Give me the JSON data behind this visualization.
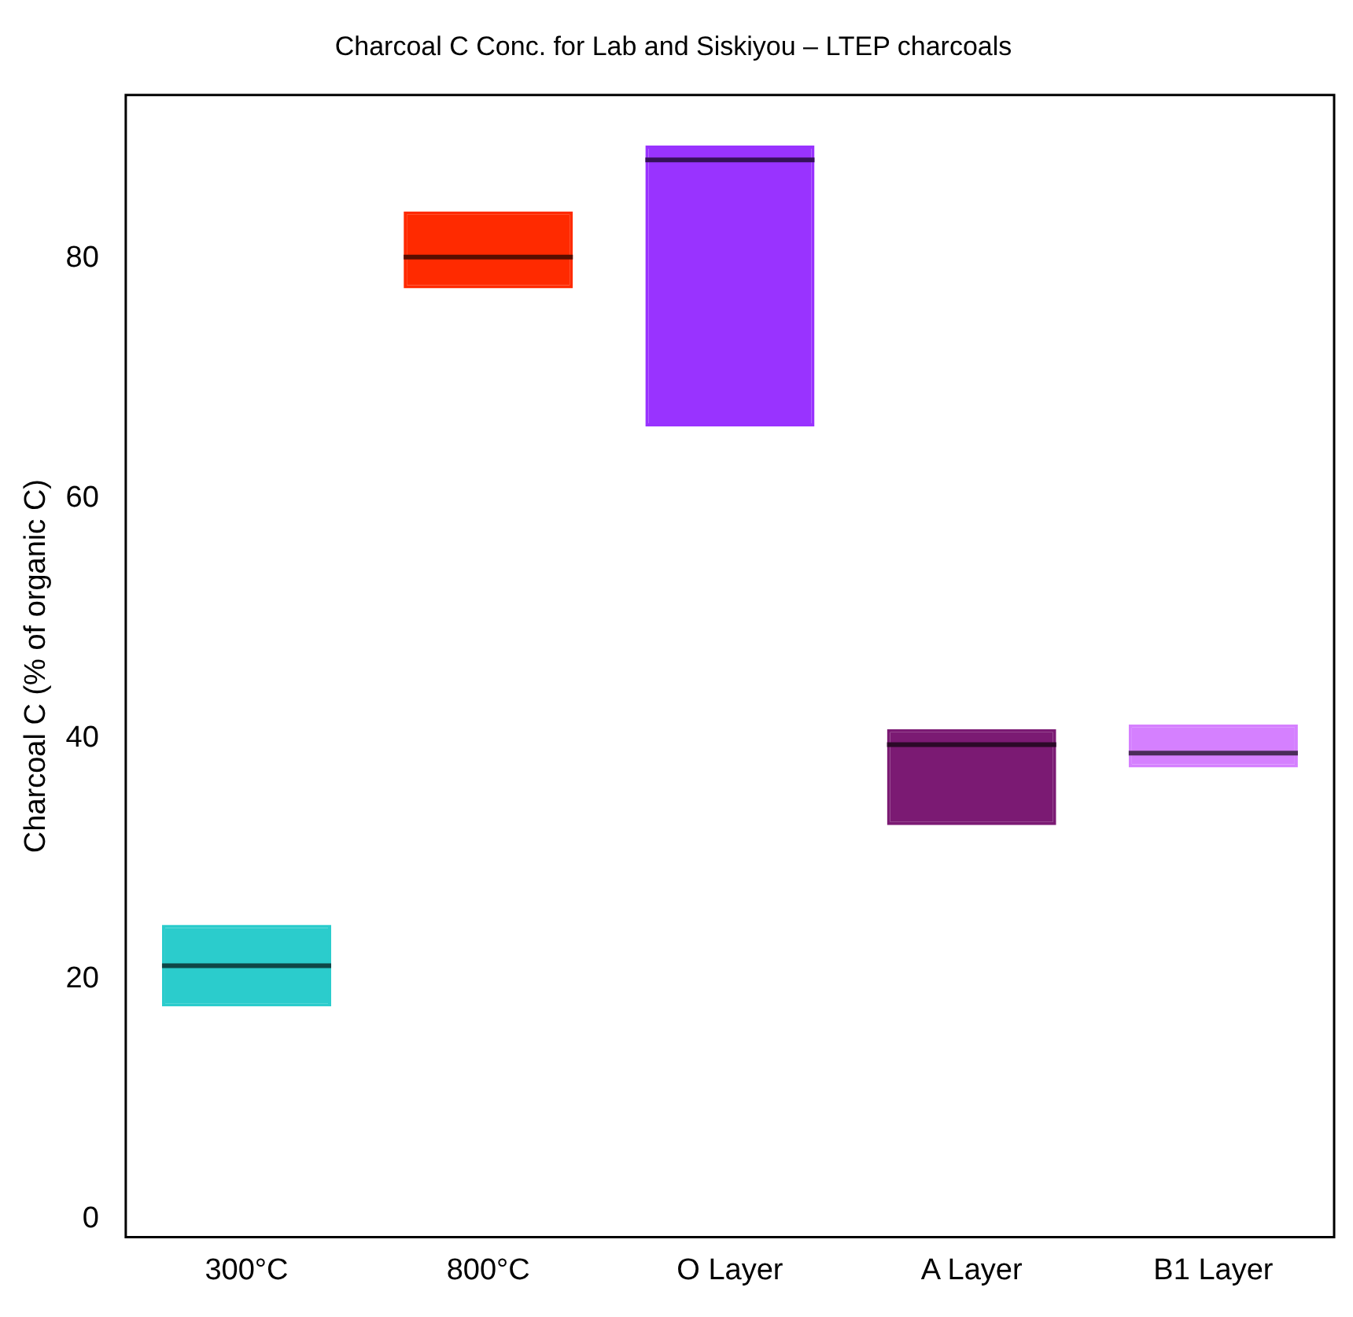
{
  "chart_data": {
    "type": "box",
    "title": "Charcoal C Conc. for Lab and Siskiyou – LTEP charcoals",
    "ylabel": "Charcoal C (% of organic C)",
    "categories": [
      "300°C",
      "800°C",
      "O Layer",
      "A Layer",
      "B1 Layer"
    ],
    "colors": [
      "#2bcccc",
      "#ff2a00",
      "#9933ff",
      "#7b1a73",
      "#d580ff"
    ],
    "boxes": [
      {
        "low": 17.7,
        "q1": 17.7,
        "median": 21.1,
        "q3": 24.5,
        "high": 24.5
      },
      {
        "low": 77.5,
        "q1": 77.5,
        "median": 80.1,
        "q3": 83.9,
        "high": 83.9
      },
      {
        "low": 66,
        "q1": 66,
        "median": 88.2,
        "q3": 89.4,
        "high": 89.4
      },
      {
        "low": 32.8,
        "q1": 32.8,
        "median": 39.5,
        "q3": 40.8,
        "high": 40.8
      },
      {
        "low": 37.6,
        "q1": 37.6,
        "median": 38.8,
        "q3": 41.2,
        "high": 41.2
      }
    ],
    "ylim": [
      -1.5,
      93.6
    ],
    "yticks": [
      0,
      20,
      40,
      60,
      80
    ],
    "grid": false,
    "legend": false
  }
}
